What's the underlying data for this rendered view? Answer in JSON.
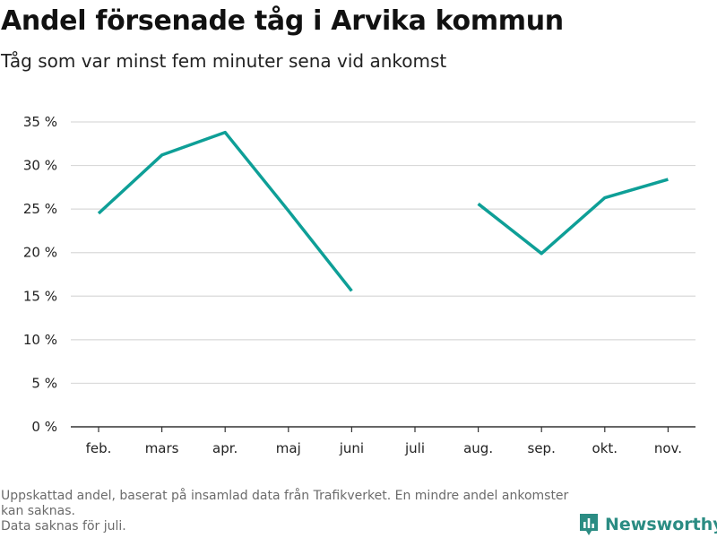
{
  "title": "Andel försenade tåg i Arvika kommun",
  "subtitle": "Tåg som var minst fem minuter sena vid ankomst",
  "footnote": [
    "Uppskattad andel, baserat på insamlad data från Trafikverket. En mindre andel ankomster kan saknas.",
    "Data saknas för juli."
  ],
  "brand": {
    "name": "Newsworthy",
    "icon": "newsworthy-logo-icon",
    "color": "#2b8c83"
  },
  "chart_data": {
    "type": "line",
    "title": "Andel försenade tåg i Arvika kommun",
    "subtitle": "Tåg som var minst fem minuter sena vid ankomst",
    "xlabel": "",
    "ylabel": "",
    "categories": [
      "feb.",
      "mars",
      "apr.",
      "maj",
      "juni",
      "juli",
      "aug.",
      "sep.",
      "okt.",
      "nov."
    ],
    "series": [
      {
        "values": [
          24.5,
          31.2,
          33.8,
          24.8,
          15.6,
          null,
          25.6,
          19.9,
          26.3,
          28.4
        ],
        "color": "#0e9f97"
      }
    ],
    "ylim": [
      0,
      35
    ],
    "yticks": [
      0,
      5,
      10,
      15,
      20,
      25,
      30,
      35
    ],
    "ytick_labels": [
      "0 %",
      "5 %",
      "10 %",
      "15 %",
      "20 %",
      "25 %",
      "30 %",
      "35 %"
    ],
    "grid": "horizontal",
    "legend": "none"
  }
}
